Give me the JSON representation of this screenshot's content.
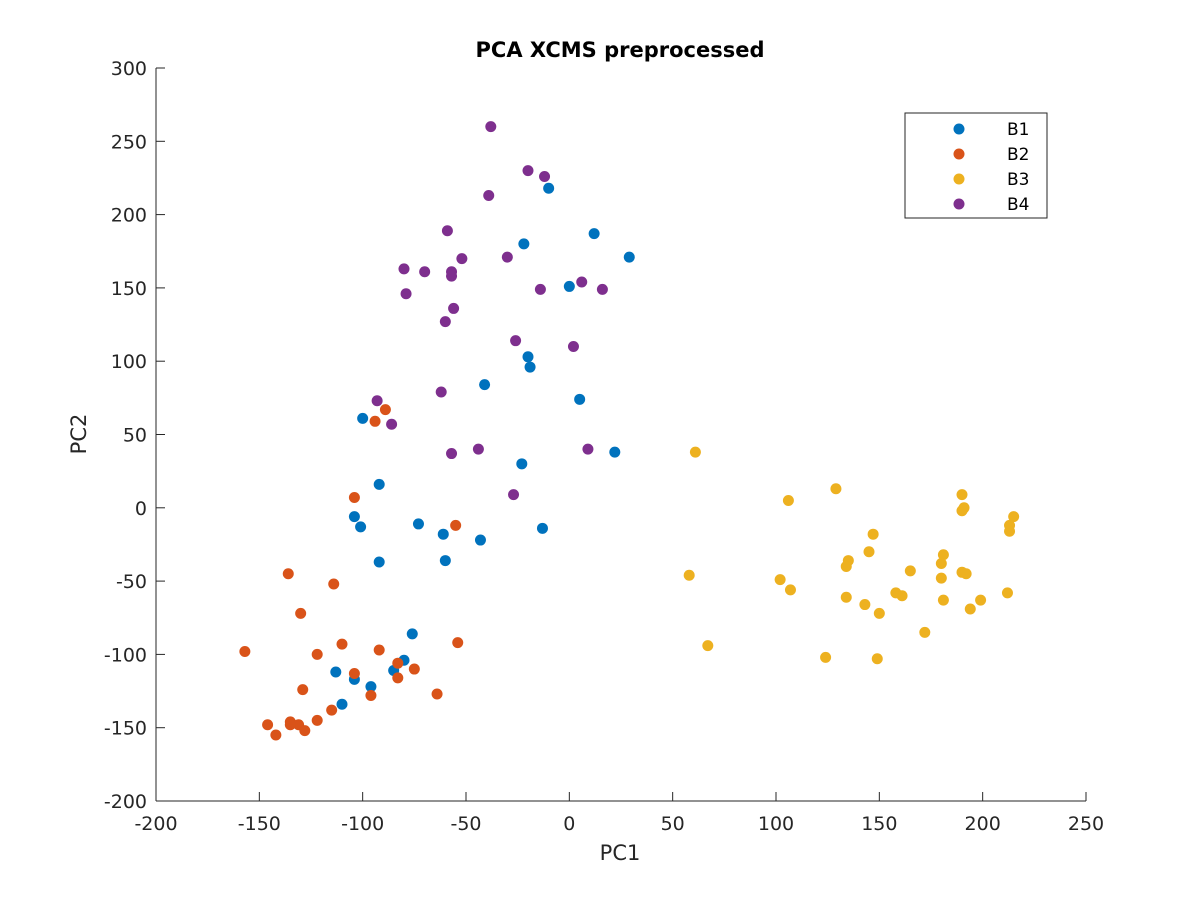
{
  "chart_data": {
    "type": "scatter",
    "title": "PCA XCMS preprocessed",
    "xlabel": "PC1",
    "ylabel": "PC2",
    "xlim": [
      -200,
      250
    ],
    "ylim": [
      -200,
      300
    ],
    "xticks": [
      -200,
      -150,
      -100,
      -50,
      0,
      50,
      100,
      150,
      200,
      250
    ],
    "yticks": [
      -200,
      -150,
      -100,
      -50,
      0,
      50,
      100,
      150,
      200,
      250,
      300
    ],
    "grid": false,
    "legend_position": "top-right",
    "series": [
      {
        "name": "B1",
        "color": "#0072BD",
        "points": [
          [
            -10,
            218
          ],
          [
            12,
            187
          ],
          [
            29,
            171
          ],
          [
            -22,
            180
          ],
          [
            0,
            151
          ],
          [
            -20,
            103
          ],
          [
            -19,
            96
          ],
          [
            -41,
            84
          ],
          [
            5,
            74
          ],
          [
            -100,
            61
          ],
          [
            22,
            38
          ],
          [
            -23,
            30
          ],
          [
            -92,
            16
          ],
          [
            -104,
            -6
          ],
          [
            -101,
            -13
          ],
          [
            -73,
            -11
          ],
          [
            -13,
            -14
          ],
          [
            -61,
            -18
          ],
          [
            -43,
            -22
          ],
          [
            -60,
            -36
          ],
          [
            -92,
            -37
          ],
          [
            -76,
            -86
          ],
          [
            -113,
            -112
          ],
          [
            -104,
            -117
          ],
          [
            -80,
            -104
          ],
          [
            -85,
            -111
          ],
          [
            -96,
            -122
          ],
          [
            -110,
            -134
          ]
        ]
      },
      {
        "name": "B2",
        "color": "#D95319",
        "points": [
          [
            -89,
            67
          ],
          [
            -94,
            59
          ],
          [
            -104,
            7
          ],
          [
            -55,
            -12
          ],
          [
            -136,
            -45
          ],
          [
            -114,
            -52
          ],
          [
            -130,
            -72
          ],
          [
            -110,
            -93
          ],
          [
            -92,
            -97
          ],
          [
            -54,
            -92
          ],
          [
            -157,
            -98
          ],
          [
            -122,
            -100
          ],
          [
            -104,
            -113
          ],
          [
            -83,
            -106
          ],
          [
            -75,
            -110
          ],
          [
            -83,
            -116
          ],
          [
            -129,
            -124
          ],
          [
            -96,
            -128
          ],
          [
            -64,
            -127
          ],
          [
            -115,
            -138
          ],
          [
            -122,
            -145
          ],
          [
            -146,
            -148
          ],
          [
            -135,
            -146
          ],
          [
            -131,
            -148
          ],
          [
            -135,
            -148
          ],
          [
            -128,
            -152
          ],
          [
            -142,
            -155
          ]
        ]
      },
      {
        "name": "B3",
        "color": "#EDB120",
        "points": [
          [
            61,
            38
          ],
          [
            106,
            5
          ],
          [
            129,
            13
          ],
          [
            190,
            9
          ],
          [
            190,
            -2
          ],
          [
            191,
            0
          ],
          [
            215,
            -6
          ],
          [
            213,
            -12
          ],
          [
            213,
            -16
          ],
          [
            147,
            -18
          ],
          [
            145,
            -30
          ],
          [
            181,
            -32
          ],
          [
            135,
            -36
          ],
          [
            134,
            -40
          ],
          [
            180,
            -38
          ],
          [
            165,
            -43
          ],
          [
            58,
            -46
          ],
          [
            102,
            -49
          ],
          [
            180,
            -48
          ],
          [
            190,
            -44
          ],
          [
            192,
            -45
          ],
          [
            107,
            -56
          ],
          [
            212,
            -58
          ],
          [
            134,
            -61
          ],
          [
            158,
            -58
          ],
          [
            161,
            -60
          ],
          [
            181,
            -63
          ],
          [
            199,
            -63
          ],
          [
            143,
            -66
          ],
          [
            194,
            -69
          ],
          [
            150,
            -72
          ],
          [
            172,
            -85
          ],
          [
            67,
            -94
          ],
          [
            124,
            -102
          ],
          [
            149,
            -103
          ]
        ]
      },
      {
        "name": "B4",
        "color": "#7E2F8E",
        "points": [
          [
            -38,
            260
          ],
          [
            -20,
            230
          ],
          [
            -12,
            226
          ],
          [
            -39,
            213
          ],
          [
            -59,
            189
          ],
          [
            -52,
            170
          ],
          [
            -30,
            171
          ],
          [
            -80,
            163
          ],
          [
            -70,
            161
          ],
          [
            -57,
            161
          ],
          [
            -57,
            158
          ],
          [
            -14,
            149
          ],
          [
            6,
            154
          ],
          [
            16,
            149
          ],
          [
            -79,
            146
          ],
          [
            -56,
            136
          ],
          [
            -60,
            127
          ],
          [
            -26,
            114
          ],
          [
            2,
            110
          ],
          [
            -62,
            79
          ],
          [
            -93,
            73
          ],
          [
            -86,
            57
          ],
          [
            -44,
            40
          ],
          [
            9,
            40
          ],
          [
            -57,
            37
          ],
          [
            -27,
            9
          ]
        ]
      }
    ]
  }
}
